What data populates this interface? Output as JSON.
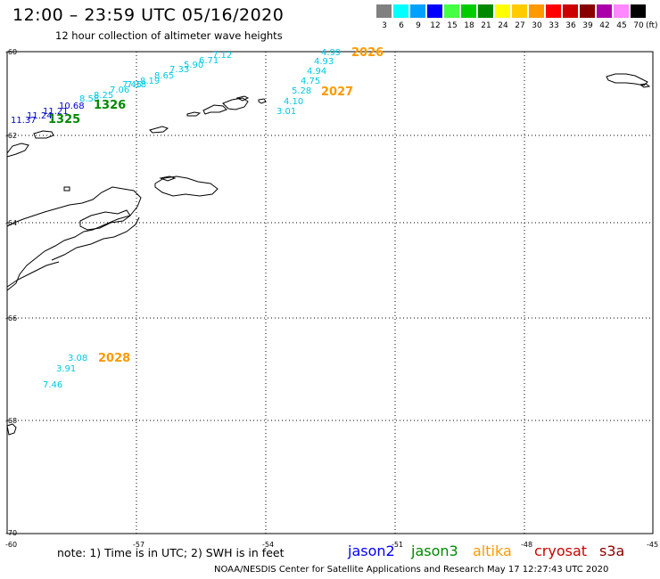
{
  "header": {
    "title": "12:00 – 23:59 UTC 05/16/2020",
    "subtitle": "12 hour collection of altimeter wave heights"
  },
  "legend": {
    "unit": "(ft)",
    "items": [
      {
        "label": "3",
        "color": "#808080"
      },
      {
        "label": "6",
        "color": "#00ffff"
      },
      {
        "label": "9",
        "color": "#00a0ff"
      },
      {
        "label": "12",
        "color": "#0000ff"
      },
      {
        "label": "15",
        "color": "#44ff44"
      },
      {
        "label": "18",
        "color": "#00cc00"
      },
      {
        "label": "21",
        "color": "#008800"
      },
      {
        "label": "24",
        "color": "#ffff00"
      },
      {
        "label": "27",
        "color": "#ffcc00"
      },
      {
        "label": "30",
        "color": "#ff9900"
      },
      {
        "label": "33",
        "color": "#ff0000"
      },
      {
        "label": "36",
        "color": "#cc0000"
      },
      {
        "label": "39",
        "color": "#880000"
      },
      {
        "label": "42",
        "color": "#aa00aa"
      },
      {
        "label": "45",
        "color": "#ff88ff"
      },
      {
        "label": "70",
        "color": "#000000"
      }
    ]
  },
  "axes": {
    "lat_labels": [
      "-60",
      "-62",
      "-64",
      "-66",
      "-68",
      "-70"
    ],
    "lon_labels": [
      "-60",
      "-57",
      "-54",
      "-51",
      "-48",
      "-45"
    ]
  },
  "observations": [
    {
      "value": "4.99",
      "color": "#00c8e6"
    },
    {
      "value": "4.93",
      "color": "#00c8e6"
    },
    {
      "value": "4.94",
      "color": "#00c8e6"
    },
    {
      "value": "4.75",
      "color": "#00c8e6"
    },
    {
      "value": "5.28",
      "color": "#00c8e6"
    },
    {
      "value": "4.10",
      "color": "#00c8e6"
    },
    {
      "value": "3.01",
      "color": "#00c8e6"
    },
    {
      "value": "7.12",
      "color": "#00c8e6"
    },
    {
      "value": "6.71",
      "color": "#00c8e6"
    },
    {
      "value": "5.90",
      "color": "#00c8e6"
    },
    {
      "value": "7.33",
      "color": "#00c8e6"
    },
    {
      "value": "8.65",
      "color": "#00c8e6"
    },
    {
      "value": "8.19",
      "color": "#00c8e6"
    },
    {
      "value": "7.18",
      "color": "#00c8e6"
    },
    {
      "value": "7.45",
      "color": "#00c8e6"
    },
    {
      "value": "7.06",
      "color": "#00c8e6"
    },
    {
      "value": "8.25",
      "color": "#00c8e6"
    },
    {
      "value": "8.58",
      "color": "#00c8e6"
    },
    {
      "value": "10.68",
      "color": "#0000cc"
    },
    {
      "value": "11.21",
      "color": "#0000cc"
    },
    {
      "value": "11.24",
      "color": "#0000cc"
    },
    {
      "value": "11.37",
      "color": "#0000cc"
    },
    {
      "value": "3.08",
      "color": "#00c8e6"
    },
    {
      "value": "3.91",
      "color": "#00c8e6"
    },
    {
      "value": "7.46",
      "color": "#00c8e6"
    }
  ],
  "tracks": [
    {
      "label": "2026",
      "color": "#ff9900"
    },
    {
      "label": "2027",
      "color": "#ff9900"
    },
    {
      "label": "1326",
      "color": "#008800"
    },
    {
      "label": "1325",
      "color": "#008800"
    },
    {
      "label": "2028",
      "color": "#ff9900"
    }
  ],
  "footer": {
    "note": "note: 1) Time is in UTC; 2) SWH is in feet",
    "satellites": [
      {
        "name": "jason2",
        "color": "#0000ff"
      },
      {
        "name": "jason3",
        "color": "#008800"
      },
      {
        "name": "altika",
        "color": "#ff9900"
      },
      {
        "name": "cryosat",
        "color": "#cc0000"
      },
      {
        "name": "s3a",
        "color": "#880000"
      }
    ],
    "credit": "NOAA/NESDIS Center for Satellite Applications and Research    May 17 12:27:43 UTC 2020"
  }
}
